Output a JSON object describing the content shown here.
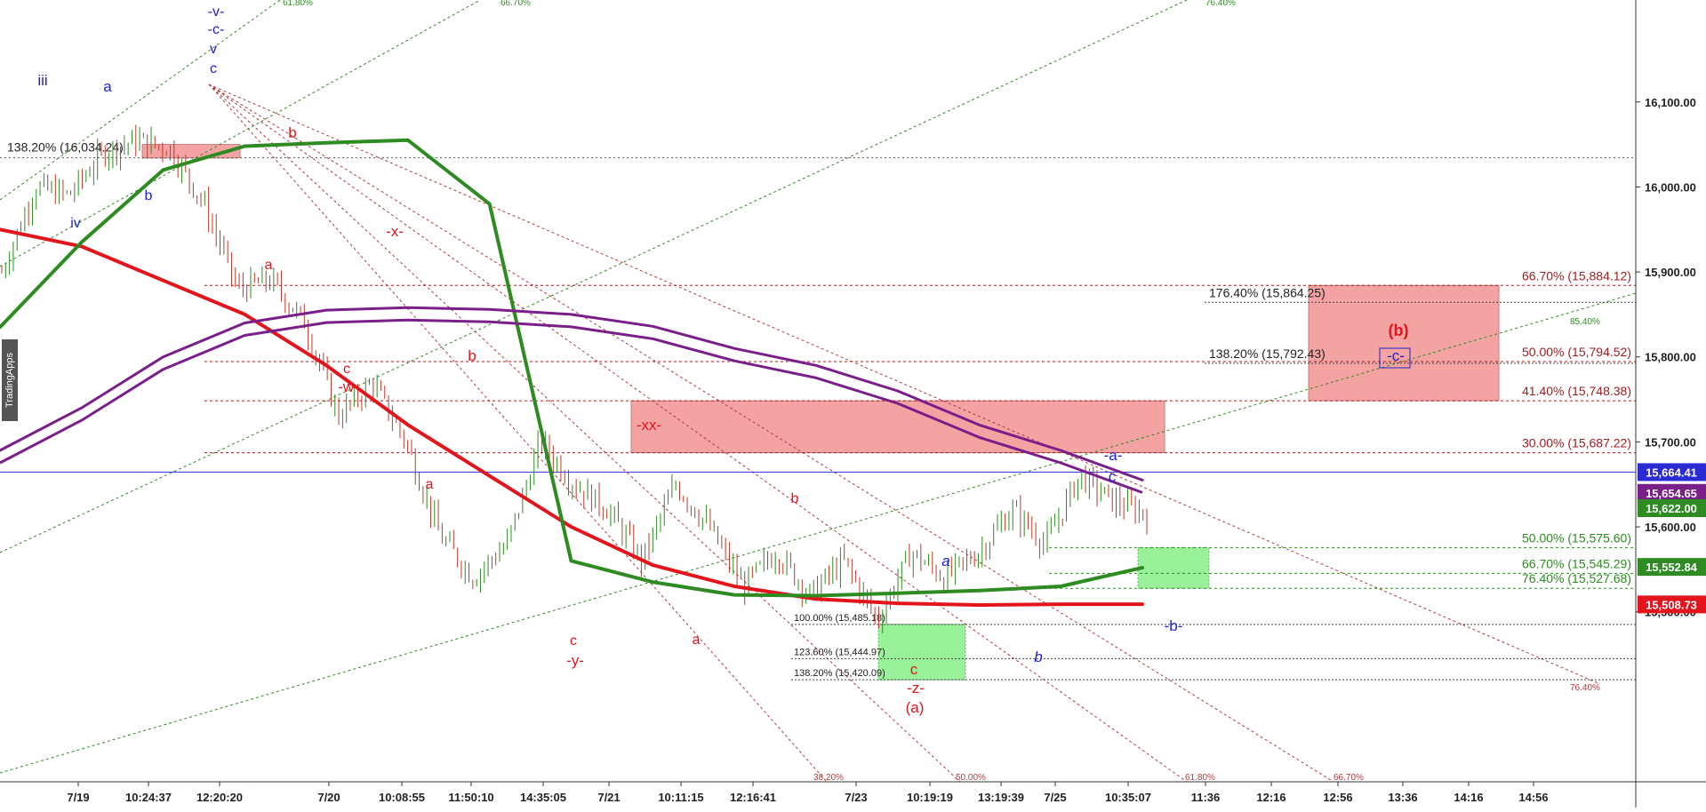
{
  "chart_data": {
    "type": "candlestick",
    "platform_watermark": "TradingApps",
    "ylim": [
      15300,
      16220
    ],
    "y_ticks": [
      "16,100.00",
      "16,000.00",
      "15,900.00",
      "15,800.00",
      "15,700.00",
      "15,600.00",
      "15,500.00"
    ],
    "y_tick_values": [
      16100,
      16000,
      15900,
      15800,
      15700,
      15600,
      15500
    ],
    "x_ticks": [
      "7/19",
      "10:24:37",
      "12:20:20",
      "7/20",
      "10:08:55",
      "11:50:10",
      "14:35:05",
      "7/21",
      "10:11:15",
      "12:16:41",
      "7/23",
      "10:19:19",
      "13:19:39",
      "7/25",
      "10:35:07",
      "11:36",
      "12:16",
      "12:56",
      "13:36",
      "14:16",
      "14:56"
    ],
    "price_badges": [
      {
        "label": "15,664.41",
        "value": 15664.41,
        "color": "#2b2bd6"
      },
      {
        "label": "15,654.65",
        "value": 15654.65,
        "color": "#7a1f8a"
      },
      {
        "label": "15,622.00",
        "value": 15622.0,
        "color": "#2e8b22"
      },
      {
        "label": "15,552.84",
        "value": 15552.84,
        "color": "#2e8b22"
      },
      {
        "label": "15,508.73",
        "value": 15508.73,
        "color": "#e3141b"
      }
    ],
    "current_price_line": 15664.41,
    "fib_levels_right": [
      {
        "label": "66.70% (15,884.12)",
        "value": 15884.12,
        "color": "#a01e1e"
      },
      {
        "label": "50.00% (15,794.52)",
        "value": 15794.52,
        "color": "#a01e1e"
      },
      {
        "label": "41.40% (15,748.38)",
        "value": 15748.38,
        "color": "#a01e1e"
      },
      {
        "label": "30.00% (15,687.22)",
        "value": 15687.22,
        "color": "#a01e1e"
      },
      {
        "label": "50.00% (15,575.60)",
        "value": 15575.6,
        "color": "#2e8b22"
      },
      {
        "label": "66.70% (15,545.29)",
        "value": 15545.29,
        "color": "#2e8b22"
      },
      {
        "label": "76.40% (15,527.68)",
        "value": 15527.68,
        "color": "#2e8b22"
      }
    ],
    "fib_levels_mid": [
      {
        "label": "176.40% (15,864.25)",
        "value": 15864.25
      },
      {
        "label": "138.20% (15,792.43)",
        "value": 15792.43
      }
    ],
    "fib_levels_bottom": [
      {
        "label": "100.00% (15,485.18)",
        "value": 15485.18
      },
      {
        "label": "123.60% (15,444.97)",
        "value": 15444.97
      },
      {
        "label": "138.20% (15,420.09)",
        "value": 15420.09
      }
    ],
    "fib_level_top": {
      "label": "138.20% (16,034.24)",
      "value": 16034.24
    },
    "fan_labels_top": [
      "61.80%",
      "66.70%",
      "76.40%"
    ],
    "fan_labels_other": [
      "85.40%",
      "76.40%",
      "38.20%",
      "50.00%",
      "61.80%",
      "66.70%"
    ],
    "zones": [
      {
        "name": "top-left resistance",
        "color": "#f39a9a",
        "y_top": 16050,
        "y_bottom": 16034
      },
      {
        "name": "xx resistance",
        "color": "#f39a9a",
        "y_top": 15748.38,
        "y_bottom": 15687.22
      },
      {
        "name": "(b) target",
        "color": "#f39a9a",
        "y_top": 15884.12,
        "y_bottom": 15748.38
      },
      {
        "name": "(a) target",
        "color": "#8ff08f",
        "y_top": 15485.18,
        "y_bottom": 15420.09
      },
      {
        "name": "-b- target",
        "color": "#8ff08f",
        "y_top": 15575.6,
        "y_bottom": 15527.68
      }
    ],
    "wave_labels": [
      {
        "text": "-v-",
        "color": "#1e22c8"
      },
      {
        "text": "-c-",
        "color": "#1e22c8"
      },
      {
        "text": "v",
        "color": "#1e22c8"
      },
      {
        "text": "c",
        "color": "#1e22c8"
      },
      {
        "text": "iii",
        "color": "#1e22c8"
      },
      {
        "text": "a",
        "color": "#1e22c8"
      },
      {
        "text": "iv",
        "color": "#1e22c8"
      },
      {
        "text": "b",
        "color": "#1e22c8"
      },
      {
        "text": "b",
        "color": "#e3141b"
      },
      {
        "text": "a",
        "color": "#e3141b"
      },
      {
        "text": "-x-",
        "color": "#e3141b"
      },
      {
        "text": "c",
        "color": "#e3141b"
      },
      {
        "text": "-w-",
        "color": "#e3141b"
      },
      {
        "text": "b",
        "color": "#e3141b"
      },
      {
        "text": "a",
        "color": "#e3141b"
      },
      {
        "text": "c",
        "color": "#e3141b"
      },
      {
        "text": "-y-",
        "color": "#e3141b"
      },
      {
        "text": "-xx-",
        "color": "#e3141b"
      },
      {
        "text": "b",
        "color": "#e3141b"
      },
      {
        "text": "a",
        "color": "#e3141b"
      },
      {
        "text": "c",
        "color": "#e3141b"
      },
      {
        "text": "-z-",
        "color": "#e3141b"
      },
      {
        "text": "(a)",
        "color": "#e3141b"
      },
      {
        "text": "a",
        "color": "#1e22c8"
      },
      {
        "text": "b",
        "color": "#1e22c8"
      },
      {
        "text": "-a-",
        "color": "#1e22c8"
      },
      {
        "text": "c",
        "color": "#1e22c8"
      },
      {
        "text": "-b-",
        "color": "#1e22c8"
      },
      {
        "text": "(b)",
        "color": "#e3141b"
      },
      {
        "text": "-c-",
        "color": "#1e22c8"
      }
    ],
    "series": [
      {
        "color": "#e3141b",
        "values": [
          15950,
          15930,
          15890,
          15850,
          15790,
          15720,
          15660,
          15600,
          15555,
          15530,
          15515,
          15510,
          15508,
          15509,
          15509
        ]
      },
      {
        "color": "#2e8b22",
        "values": [
          15835,
          15935,
          16020,
          16048,
          16052,
          16055,
          15980,
          15560,
          15535,
          15520,
          15519,
          15522,
          15525,
          15530,
          15552
        ]
      },
      {
        "color": "#7a1f8a",
        "values": [
          15690,
          15740,
          15800,
          15840,
          15855,
          15858,
          15856,
          15850,
          15836,
          15810,
          15790,
          15760,
          15720,
          15690,
          15655
        ]
      }
    ],
    "price_path": [
      15900,
      16000,
      15990,
      16040,
      16055,
      16045,
      15980,
      15880,
      15890,
      15840,
      15730,
      15770,
      15700,
      15590,
      15540,
      15580,
      15700,
      15650,
      15620,
      15560,
      15650,
      15600,
      15530,
      15570,
      15520,
      15560,
      15490,
      15570,
      15540,
      15570,
      15620,
      15580,
      15660,
      15630,
      15615
    ]
  }
}
